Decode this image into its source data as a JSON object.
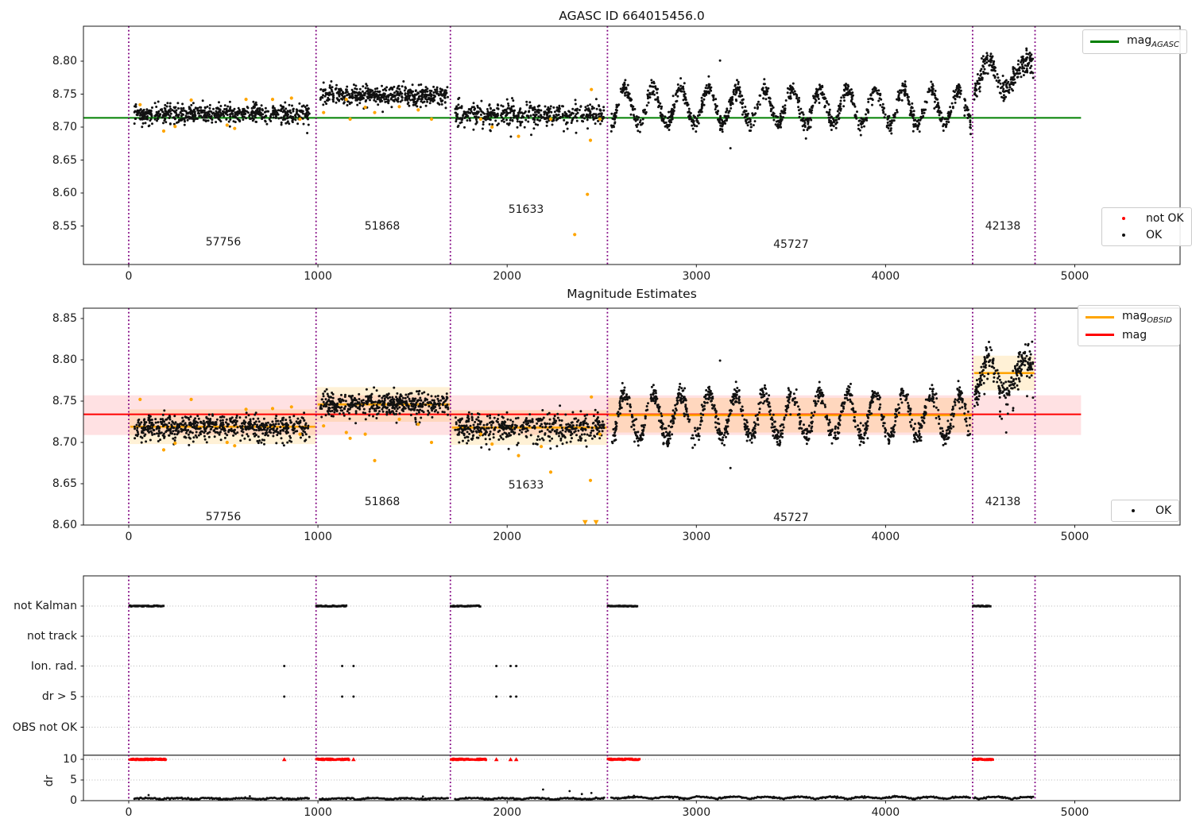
{
  "figure_title": "AGASC ID 664015456.0",
  "middle_title": "Magnitude Estimates",
  "obsid_labels": [
    "57756",
    "51868",
    "51633",
    "45727",
    "42138"
  ],
  "legends": {
    "mag_agasc": {
      "prefix": "mag",
      "sub": "AGASC"
    },
    "not_ok": "not OK",
    "ok": "OK",
    "mag_obsid": {
      "prefix": "mag",
      "sub": "OBSID"
    },
    "mag": "mag",
    "ok2": "OK"
  },
  "colors": {
    "mag_agasc_line": "#008000",
    "mag_line": "#ff0000",
    "mag_obsid_line": "#ffa500",
    "boundary_line": "#800080",
    "ok_points": "#111111",
    "not_ok_points": "#ffa500",
    "err_band": "rgba(255,20,40,0.13)",
    "obsid_band": "rgba(255,165,0,0.16)",
    "grid": "#b8b8b8",
    "dr_clip": "#ff0000"
  },
  "chart_data": [
    {
      "type": "scatter",
      "title": "AGASC ID 664015456.0",
      "xlim": [
        -240,
        5560
      ],
      "ylim": [
        8.492,
        8.852
      ],
      "xticks": [
        0,
        1000,
        2000,
        3000,
        4000,
        5000
      ],
      "yticks": [
        8.55,
        8.6,
        8.65,
        8.7,
        8.75,
        8.8
      ],
      "legend": [
        "mag_AGASC",
        "not OK",
        "OK"
      ],
      "hline": {
        "label": "mag_AGASC",
        "value": 8.714,
        "x_end": 5033
      },
      "boundaries": [
        0,
        990,
        1700,
        2530,
        4460,
        4790
      ],
      "segments": [
        {
          "obsid": "57756",
          "x": [
            30,
            955
          ],
          "n": 640,
          "mean": 8.7205,
          "sigma": 0.0068,
          "pattern": "flat",
          "low_tail": 0.06,
          "low_amp": 0.018,
          "label": {
            "x": 500,
            "y": 8.525
          }
        },
        {
          "obsid": "51868",
          "x": [
            1010,
            1690
          ],
          "n": 500,
          "mean": 8.7485,
          "sigma": 0.0068,
          "pattern": "flat",
          "low_tail": 0.05,
          "low_amp": 0.016,
          "label": {
            "x": 1340,
            "y": 8.55
          }
        },
        {
          "obsid": "51633",
          "x": [
            1725,
            2515
          ],
          "n": 470,
          "mean": 8.7205,
          "sigma": 0.008,
          "pattern": "flat",
          "low_tail": 0.12,
          "low_amp": 0.022,
          "label": {
            "x": 2100,
            "y": 8.575
          }
        },
        {
          "obsid": "45727",
          "x": [
            2550,
            4450
          ],
          "n": 1150,
          "mean": 8.7315,
          "sigma": 0.0062,
          "pattern": "osc",
          "period": 147,
          "amp": 0.0265,
          "low_tail": 0.03,
          "low_amp": 0.015,
          "label": {
            "x": 3500,
            "y": 8.522
          }
        },
        {
          "obsid": "42138",
          "x": [
            4468,
            4782
          ],
          "n": 235,
          "base": 8.745,
          "sigma": 0.0078,
          "pattern": "humps",
          "humps": [
            [
              4545,
              55
            ],
            [
              4740,
              75
            ]
          ],
          "hump_h": 0.057,
          "low_tail": 0.05,
          "low_amp": 0.02,
          "label": {
            "x": 4620,
            "y": 8.55
          }
        }
      ],
      "not_ok_points": [
        [
          60,
          8.734
        ],
        [
          185,
          8.694
        ],
        [
          245,
          8.701
        ],
        [
          330,
          8.741
        ],
        [
          520,
          8.703
        ],
        [
          560,
          8.698
        ],
        [
          620,
          8.742
        ],
        [
          760,
          8.742
        ],
        [
          860,
          8.744
        ],
        [
          905,
          8.712
        ],
        [
          1030,
          8.722
        ],
        [
          1150,
          8.742
        ],
        [
          1170,
          8.712
        ],
        [
          1250,
          8.73
        ],
        [
          1300,
          8.722
        ],
        [
          1430,
          8.731
        ],
        [
          1530,
          8.726
        ],
        [
          1600,
          8.712
        ],
        [
          1860,
          8.712
        ],
        [
          1920,
          8.7
        ],
        [
          2060,
          8.686
        ],
        [
          2230,
          8.712
        ],
        [
          2357,
          8.537
        ],
        [
          2424,
          8.598
        ],
        [
          2440,
          8.68
        ],
        [
          2445,
          8.757
        ],
        [
          2490,
          8.712
        ]
      ],
      "extra_points": [
        [
          3125,
          8.801
        ],
        [
          3180,
          8.668
        ]
      ]
    },
    {
      "type": "scatter",
      "title": "Magnitude Estimates",
      "xlim": [
        -240,
        5560
      ],
      "ylim": [
        8.6,
        8.8625
      ],
      "xticks": [
        0,
        1000,
        2000,
        3000,
        4000,
        5000
      ],
      "yticks": [
        8.6,
        8.65,
        8.7,
        8.75,
        8.8,
        8.85
      ],
      "legend": [
        "mag_OBSID",
        "mag",
        "OK"
      ],
      "mag_line": {
        "label": "mag",
        "value": 8.734,
        "x_end": 5033
      },
      "mag_err_band": [
        8.709,
        8.757
      ],
      "boundaries": [
        0,
        990,
        1700,
        2530,
        4460,
        4790
      ],
      "obsid_lines": [
        {
          "obsid": "57756",
          "value": 8.719,
          "band": [
            8.698,
            8.74
          ]
        },
        {
          "obsid": "51868",
          "value": 8.746,
          "band": [
            8.725,
            8.767
          ]
        },
        {
          "obsid": "51633",
          "value": 8.718,
          "band": [
            8.697,
            8.739
          ]
        },
        {
          "obsid": "45727",
          "value": 8.733,
          "band": [
            8.712,
            8.754
          ]
        },
        {
          "obsid": "42138",
          "value": 8.784,
          "band": [
            8.763,
            8.805
          ]
        }
      ],
      "segments": [
        {
          "obsid": "57756",
          "x": [
            30,
            955
          ],
          "n": 640,
          "mean": 8.7195,
          "sigma": 0.0072,
          "pattern": "flat",
          "low_tail": 0.06,
          "low_amp": 0.018,
          "label": {
            "x": 500,
            "y": 8.61
          }
        },
        {
          "obsid": "51868",
          "x": [
            1010,
            1690
          ],
          "n": 500,
          "mean": 8.7465,
          "sigma": 0.007,
          "pattern": "flat",
          "low_tail": 0.05,
          "low_amp": 0.016,
          "label": {
            "x": 1340,
            "y": 8.628
          }
        },
        {
          "obsid": "51633",
          "x": [
            1725,
            2515
          ],
          "n": 470,
          "mean": 8.7185,
          "sigma": 0.0085,
          "pattern": "flat",
          "low_tail": 0.12,
          "low_amp": 0.022,
          "label": {
            "x": 2100,
            "y": 8.648
          }
        },
        {
          "obsid": "45727",
          "x": [
            2550,
            4450
          ],
          "n": 1150,
          "mean": 8.7325,
          "sigma": 0.0062,
          "pattern": "osc",
          "period": 147,
          "amp": 0.0265,
          "low_tail": 0.03,
          "low_amp": 0.015,
          "label": {
            "x": 3500,
            "y": 8.609
          }
        },
        {
          "obsid": "42138",
          "x": [
            4468,
            4782
          ],
          "n": 235,
          "base": 8.746,
          "sigma": 0.0095,
          "pattern": "humps",
          "humps": [
            [
              4545,
              55
            ],
            [
              4740,
              75
            ]
          ],
          "hump_h": 0.058,
          "low_tail": 0.12,
          "low_amp": 0.04,
          "label": {
            "x": 4620,
            "y": 8.628
          }
        }
      ],
      "not_ok_points": [
        [
          60,
          8.752
        ],
        [
          185,
          8.691
        ],
        [
          245,
          8.699
        ],
        [
          330,
          8.752
        ],
        [
          520,
          8.7
        ],
        [
          560,
          8.696
        ],
        [
          620,
          8.74
        ],
        [
          760,
          8.741
        ],
        [
          860,
          8.743
        ],
        [
          905,
          8.71
        ],
        [
          1030,
          8.72
        ],
        [
          1150,
          8.712
        ],
        [
          1170,
          8.705
        ],
        [
          1250,
          8.71
        ],
        [
          1300,
          8.678
        ],
        [
          1430,
          8.728
        ],
        [
          1530,
          8.722
        ],
        [
          1600,
          8.7
        ],
        [
          1860,
          8.71
        ],
        [
          1920,
          8.698
        ],
        [
          2060,
          8.684
        ],
        [
          2180,
          8.695
        ],
        [
          2230,
          8.664
        ],
        [
          2440,
          8.654
        ],
        [
          2445,
          8.755
        ],
        [
          2490,
          8.71
        ]
      ],
      "clipped_markers": [
        2412,
        2470
      ],
      "extra_points": [
        [
          3125,
          8.799
        ],
        [
          3180,
          8.669
        ]
      ]
    },
    {
      "type": "scatter",
      "title": "",
      "xlim": [
        -240,
        5560
      ],
      "xticks": [
        0,
        1000,
        2000,
        3000,
        4000,
        5000
      ],
      "rows": [
        "not Kalman",
        "not track",
        "Ion. rad.",
        "dr > 5",
        "OBS not OK"
      ],
      "dr_ticks": [
        10,
        5,
        0
      ],
      "dr_axis_label": "dr",
      "dr_limit_line": 11,
      "boundaries": [
        0,
        990,
        1700,
        2530,
        4460,
        4790
      ],
      "not_kalman_runs": [
        [
          5,
          185
        ],
        [
          992,
          1150
        ],
        [
          1703,
          1858
        ],
        [
          2533,
          2690
        ],
        [
          4463,
          4555
        ]
      ],
      "not_track_points": [],
      "ion_rad_points": [
        822,
        1128,
        1188,
        1943,
        2018,
        2048
      ],
      "dr_gt5_points": [
        822,
        1128,
        1188,
        1943,
        2018,
        2048
      ],
      "obs_not_ok_points": [],
      "dr_clip_runs": [
        [
          5,
          195
        ],
        [
          992,
          1165
        ],
        [
          1703,
          1890
        ],
        [
          2533,
          2700
        ],
        [
          4463,
          4568
        ]
      ],
      "dr_clip_points": [
        822,
        1128,
        1188,
        1943,
        2018,
        2048
      ],
      "dr_trace": {
        "segments": [
          [
            30,
            955
          ],
          [
            1010,
            1690
          ],
          [
            1725,
            2515
          ],
          [
            2550,
            4450
          ],
          [
            4468,
            4782
          ]
        ],
        "base_pre": 0.32,
        "amp_pre": 0.28,
        "base_post": 0.42,
        "amp_post": 0.5,
        "sigma": 0.09,
        "change_at": 2530
      },
      "dr_stray_points": [
        [
          105,
          1.35
        ],
        [
          640,
          1.05
        ],
        [
          1555,
          1.0
        ],
        [
          2190,
          2.7
        ],
        [
          2330,
          2.3
        ],
        [
          2395,
          1.6
        ],
        [
          2445,
          1.85
        ]
      ]
    }
  ]
}
